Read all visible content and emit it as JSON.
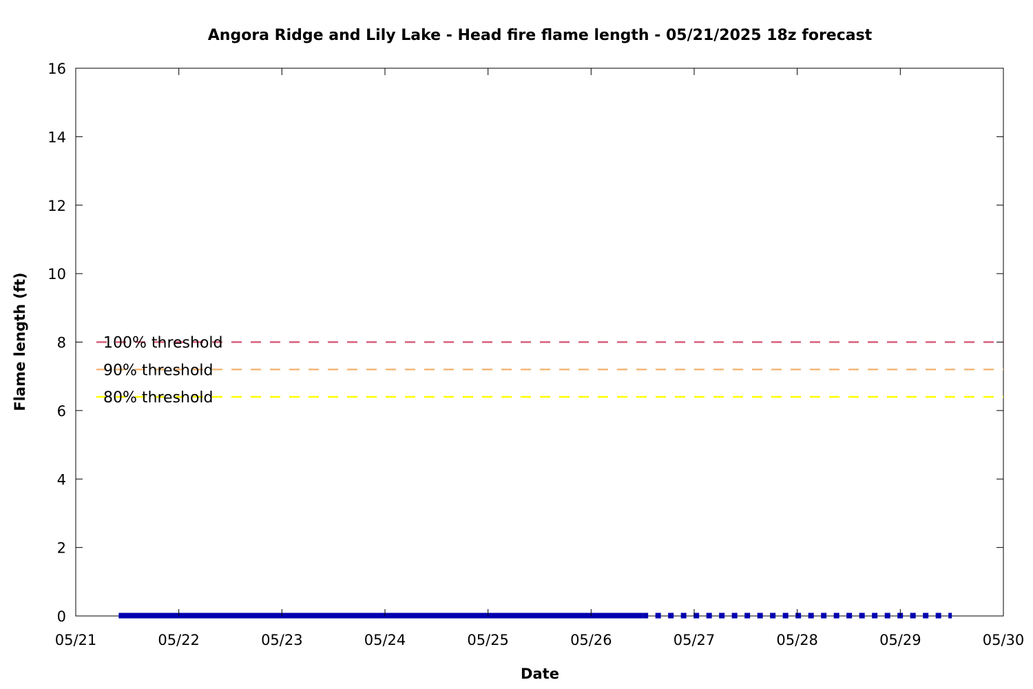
{
  "chart_data": {
    "type": "line",
    "title": "Angora Ridge and Lily Lake - Head fire flame length - 05/21/2025 18z forecast",
    "xlabel": "Date",
    "ylabel": "Flame length (ft)",
    "xlim": [
      "05/21",
      "05/30"
    ],
    "ylim": [
      0,
      16
    ],
    "x_ticks": [
      "05/21",
      "05/22",
      "05/23",
      "05/24",
      "05/25",
      "05/26",
      "05/27",
      "05/28",
      "05/29",
      "05/30"
    ],
    "y_ticks": [
      0,
      2,
      4,
      6,
      8,
      10,
      12,
      14,
      16
    ],
    "grid": false,
    "thresholds": [
      {
        "label": "100% threshold",
        "value": 8.0,
        "color": "#d95f7a"
      },
      {
        "label": "90% threshold",
        "value": 7.2,
        "color": "#f4b87a"
      },
      {
        "label": "80% threshold",
        "value": 6.4,
        "color": "#ffff00"
      }
    ],
    "series": [
      {
        "style": "solid",
        "color": "#0000b0",
        "x": [
          "05/21 10:00",
          "05/26 12:00"
        ],
        "y": [
          0,
          0
        ]
      },
      {
        "style": "dotted",
        "color": "#0000b0",
        "x": [
          "05/26 12:00",
          "05/29 12:00"
        ],
        "y": [
          0,
          0
        ]
      }
    ]
  }
}
